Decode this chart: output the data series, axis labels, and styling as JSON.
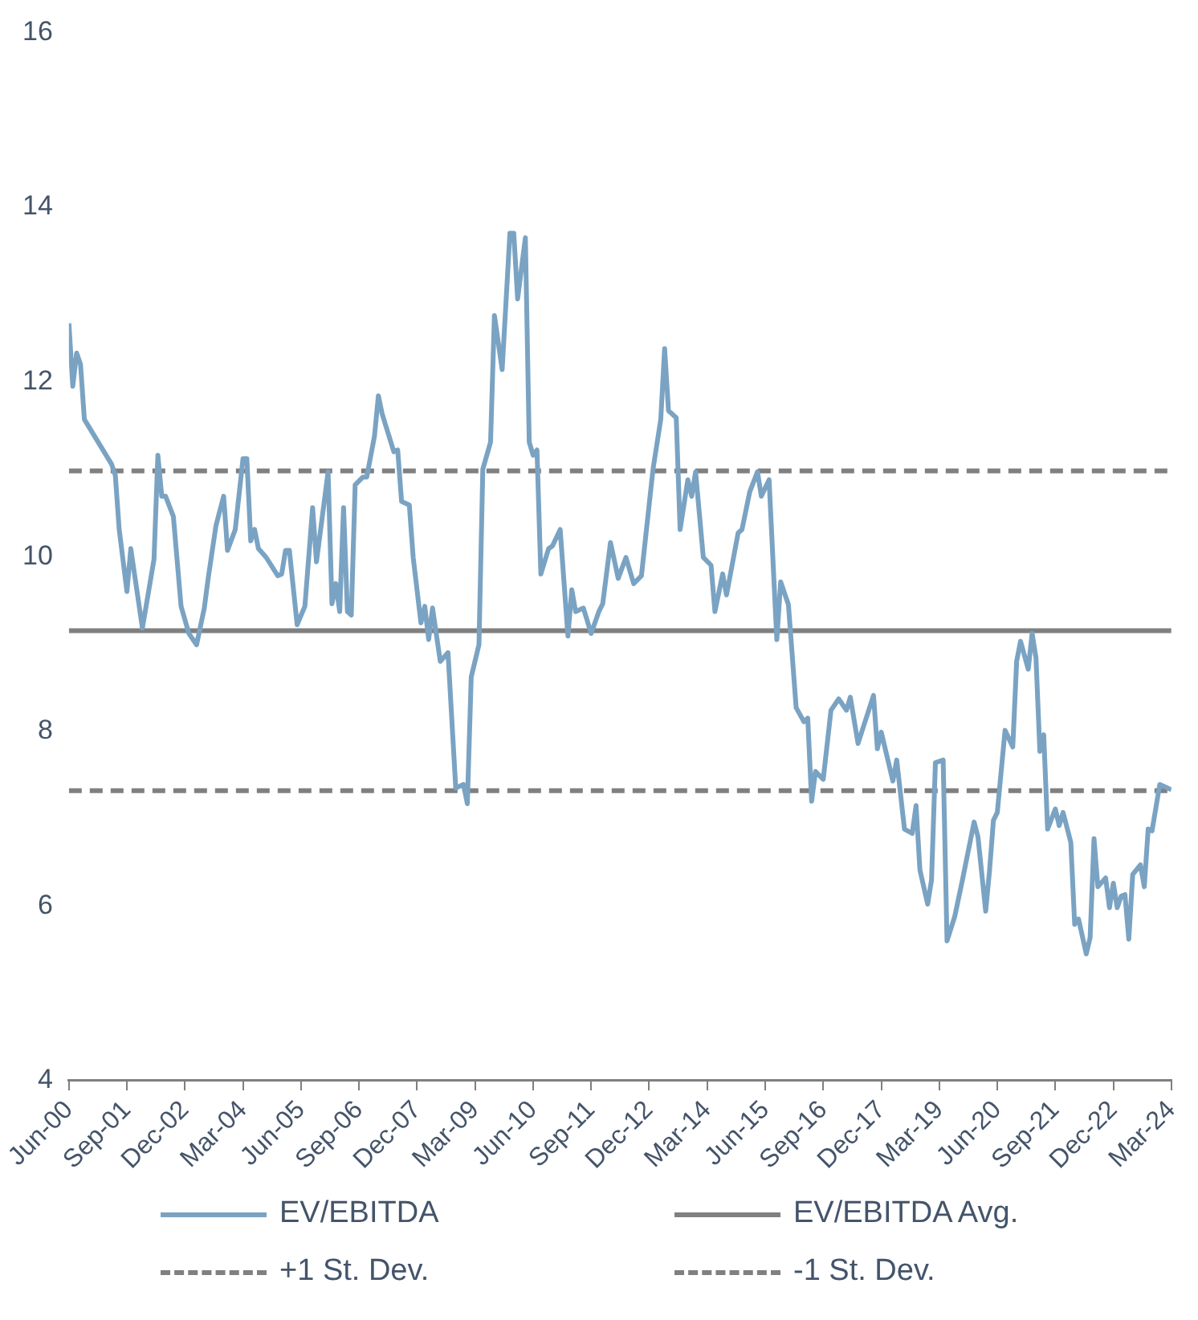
{
  "chart_data": {
    "type": "line",
    "x": [
      "2000-06",
      "2000-07",
      "2000-08",
      "2000-09",
      "2000-10",
      "2001-05",
      "2001-06",
      "2001-07",
      "2001-09",
      "2001-10",
      "2002-01",
      "2002-04",
      "2002-05",
      "2002-06",
      "2002-07",
      "2002-09",
      "2002-11",
      "2003-01",
      "2003-03",
      "2003-05",
      "2003-06",
      "2003-08",
      "2003-10",
      "2003-11",
      "2004-01",
      "2004-03",
      "2004-04",
      "2004-05",
      "2004-06",
      "2004-07",
      "2004-09",
      "2004-12",
      "2005-01",
      "2005-02",
      "2005-03",
      "2005-05",
      "2005-07",
      "2005-09",
      "2005-10",
      "2006-01",
      "2006-02",
      "2006-03",
      "2006-04",
      "2006-05",
      "2006-06",
      "2006-07",
      "2006-08",
      "2006-10",
      "2006-11",
      "2007-01",
      "2007-02",
      "2007-03",
      "2007-06",
      "2007-07",
      "2007-08",
      "2007-10",
      "2007-11",
      "2008-01",
      "2008-02",
      "2008-03",
      "2008-04",
      "2008-06",
      "2008-08",
      "2008-10",
      "2008-12",
      "2009-01",
      "2009-02",
      "2009-04",
      "2009-05",
      "2009-07",
      "2009-08",
      "2009-10",
      "2009-12",
      "2010-01",
      "2010-02",
      "2010-04",
      "2010-05",
      "2010-06",
      "2010-07",
      "2010-08",
      "2010-10",
      "2010-11",
      "2011-01",
      "2011-03",
      "2011-04",
      "2011-05",
      "2011-07",
      "2011-09",
      "2011-11",
      "2011-12",
      "2012-02",
      "2012-04",
      "2012-06",
      "2012-08",
      "2012-10",
      "2013-01",
      "2013-03",
      "2013-04",
      "2013-05",
      "2013-07",
      "2013-08",
      "2013-10",
      "2013-11",
      "2013-12",
      "2014-02",
      "2014-04",
      "2014-05",
      "2014-07",
      "2014-08",
      "2014-11",
      "2014-12",
      "2015-02",
      "2015-04",
      "2015-05",
      "2015-07",
      "2015-09",
      "2015-10",
      "2015-12",
      "2016-02",
      "2016-04",
      "2016-05",
      "2016-06",
      "2016-07",
      "2016-09",
      "2016-11",
      "2017-01",
      "2017-03",
      "2017-04",
      "2017-06",
      "2017-10",
      "2017-11",
      "2017-12",
      "2018-03",
      "2018-04",
      "2018-06",
      "2018-08",
      "2018-09",
      "2018-10",
      "2018-12",
      "2019-01",
      "2019-02",
      "2019-04",
      "2019-05",
      "2019-07",
      "2019-09",
      "2019-12",
      "2020-01",
      "2020-03",
      "2020-04",
      "2020-05",
      "2020-06",
      "2020-08",
      "2020-10",
      "2020-11",
      "2020-12",
      "2021-02",
      "2021-03",
      "2021-04",
      "2021-05",
      "2021-06",
      "2021-07",
      "2021-09",
      "2021-10",
      "2021-11",
      "2022-01",
      "2022-02",
      "2022-03",
      "2022-05",
      "2022-06",
      "2022-07",
      "2022-08",
      "2022-10",
      "2022-11",
      "2022-12",
      "2023-01",
      "2023-02",
      "2023-03",
      "2023-04",
      "2023-05",
      "2023-07",
      "2023-08",
      "2023-09",
      "2023-10",
      "2023-12",
      "2024-03"
    ],
    "series": [
      {
        "name": "EV/EBITDA",
        "color": "#7aa3c3",
        "line_style": "solid",
        "values": [
          12.67,
          11.95,
          12.33,
          12.2,
          11.57,
          11.06,
          10.93,
          10.31,
          9.6,
          10.09,
          9.18,
          9.97,
          11.16,
          10.69,
          10.69,
          10.46,
          9.43,
          9.12,
          8.99,
          9.41,
          9.75,
          10.35,
          10.69,
          10.07,
          10.31,
          11.12,
          11.12,
          10.18,
          10.31,
          10.09,
          9.99,
          9.78,
          9.8,
          10.07,
          10.07,
          9.22,
          9.43,
          10.56,
          9.94,
          10.97,
          9.46,
          9.69,
          9.37,
          10.56,
          9.37,
          9.33,
          10.82,
          10.91,
          10.91,
          11.38,
          11.84,
          11.63,
          11.2,
          11.22,
          10.63,
          10.59,
          9.99,
          9.24,
          9.43,
          9.05,
          9.41,
          8.8,
          8.9,
          7.35,
          7.39,
          7.17,
          8.62,
          8.99,
          11.0,
          11.31,
          12.76,
          12.14,
          13.7,
          13.7,
          12.95,
          13.65,
          11.31,
          11.16,
          11.22,
          9.8,
          10.09,
          10.12,
          10.31,
          9.09,
          9.62,
          9.37,
          9.41,
          9.12,
          9.37,
          9.46,
          10.16,
          9.75,
          9.99,
          9.69,
          9.78,
          11.0,
          11.57,
          12.38,
          11.67,
          11.59,
          10.31,
          10.88,
          10.69,
          10.97,
          9.99,
          9.9,
          9.37,
          9.8,
          9.56,
          10.27,
          10.31,
          10.74,
          10.97,
          10.69,
          10.88,
          9.05,
          9.71,
          9.45,
          8.27,
          8.11,
          8.15,
          7.2,
          7.54,
          7.45,
          8.24,
          8.37,
          8.24,
          8.39,
          7.86,
          8.41,
          7.8,
          7.99,
          7.43,
          7.67,
          6.88,
          6.83,
          7.15,
          6.41,
          6.02,
          6.3,
          7.64,
          7.67,
          5.6,
          5.88,
          6.3,
          6.96,
          6.79,
          5.94,
          6.41,
          6.98,
          7.07,
          8.01,
          7.82,
          8.8,
          9.03,
          8.71,
          9.12,
          8.84,
          7.77,
          7.96,
          6.88,
          7.11,
          6.92,
          7.07,
          6.73,
          5.79,
          5.85,
          5.45,
          5.64,
          6.77,
          6.22,
          6.32,
          5.98,
          6.26,
          5.98,
          6.11,
          6.13,
          5.62,
          6.36,
          6.47,
          6.22,
          6.88,
          6.86,
          7.39,
          7.33
        ]
      },
      {
        "name": "EV/EBITDA Avg.",
        "color": "#808080",
        "line_style": "solid",
        "x": [
          "2000-06",
          "2024-03"
        ],
        "values": [
          9.15,
          9.15
        ]
      },
      {
        "name": "+1 St. Dev.",
        "color": "#808080",
        "line_style": "dashed",
        "x": [
          "2000-06",
          "2024-03"
        ],
        "values": [
          10.98,
          10.98
        ]
      },
      {
        "name": "-1 St. Dev.",
        "color": "#808080",
        "line_style": "dashed",
        "x": [
          "2000-06",
          "2024-03"
        ],
        "values": [
          7.32,
          7.32
        ]
      }
    ],
    "xlim": [
      "2000-06",
      "2024-03"
    ],
    "xticks": [
      {
        "value": "2000-06",
        "label": "Jun-00"
      },
      {
        "value": "2001-09",
        "label": "Sep-01"
      },
      {
        "value": "2002-12",
        "label": "Dec-02"
      },
      {
        "value": "2004-03",
        "label": "Mar-04"
      },
      {
        "value": "2005-06",
        "label": "Jun-05"
      },
      {
        "value": "2006-09",
        "label": "Sep-06"
      },
      {
        "value": "2007-12",
        "label": "Dec-07"
      },
      {
        "value": "2009-03",
        "label": "Mar-09"
      },
      {
        "value": "2010-06",
        "label": "Jun-10"
      },
      {
        "value": "2011-09",
        "label": "Sep-11"
      },
      {
        "value": "2012-12",
        "label": "Dec-12"
      },
      {
        "value": "2014-03",
        "label": "Mar-14"
      },
      {
        "value": "2015-06",
        "label": "Jun-15"
      },
      {
        "value": "2016-09",
        "label": "Sep-16"
      },
      {
        "value": "2017-12",
        "label": "Dec-17"
      },
      {
        "value": "2019-03",
        "label": "Mar-19"
      },
      {
        "value": "2020-06",
        "label": "Jun-20"
      },
      {
        "value": "2021-09",
        "label": "Sep-21"
      },
      {
        "value": "2022-12",
        "label": "Dec-22"
      },
      {
        "value": "2024-03",
        "label": "Mar-24"
      }
    ],
    "ylim": [
      4,
      16
    ],
    "yticks": [
      4,
      6,
      8,
      10,
      12,
      14,
      16
    ],
    "grid": false,
    "legend": "bottom",
    "marker": "none"
  }
}
